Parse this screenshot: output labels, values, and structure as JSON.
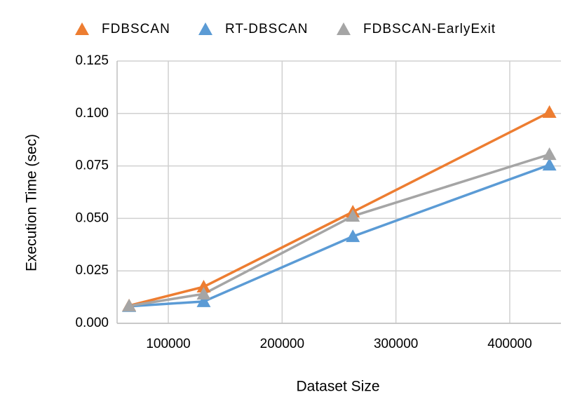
{
  "chart_data": {
    "type": "line",
    "x_label": "Dataset Size",
    "y_label": "Execution Time (sec)",
    "x": [
      65536,
      131072,
      262144,
      434874
    ],
    "series": [
      {
        "name": "FDBSCAN",
        "color": "#ED7D31",
        "values": [
          0.0084,
          0.0174,
          0.0531,
          0.1006
        ]
      },
      {
        "name": "RT-DBSCAN",
        "color": "#5B9BD5",
        "values": [
          0.0081,
          0.0104,
          0.0414,
          0.0755
        ]
      },
      {
        "name": "FDBSCAN-EarlyExit",
        "color": "#A5A5A5",
        "values": [
          0.0083,
          0.014,
          0.0511,
          0.0805
        ]
      }
    ],
    "xlim": [
      55000,
      445000
    ],
    "xticks": [
      100000,
      200000,
      300000,
      400000
    ],
    "ylim": [
      0,
      0.125
    ],
    "yticks": [
      {
        "value": 0,
        "label": "0.000"
      },
      {
        "value": 0.025,
        "label": "0.025"
      },
      {
        "value": 0.05,
        "label": "0.050"
      },
      {
        "value": 0.075,
        "label": "0.075"
      },
      {
        "value": 0.1,
        "label": "0.100"
      },
      {
        "value": 0.125,
        "label": "0.125"
      }
    ],
    "grid": true,
    "legend": "top"
  }
}
